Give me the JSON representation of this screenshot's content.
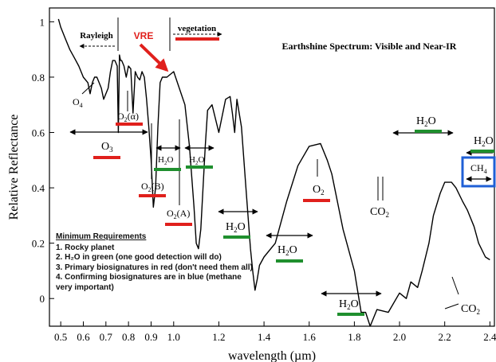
{
  "chart_data": {
    "type": "line",
    "title": "Earthshine Spectrum: Visible and Near-IR",
    "xlabel": "wavelength (µm)",
    "ylabel": "Relative Reflectance",
    "xlim": [
      0.45,
      2.42
    ],
    "ylim": [
      -0.1,
      1.05
    ],
    "x_ticks": [
      0.5,
      0.6,
      0.7,
      0.8,
      0.9,
      1.0,
      1.2,
      1.4,
      1.6,
      1.8,
      2.0,
      2.2,
      2.4
    ],
    "x_tick_labels": [
      "0.5",
      "0.6",
      "0.7",
      "0.8",
      "0.9",
      "1.0",
      "1.2",
      "1.4",
      "1.6",
      "1.8",
      "2.0",
      "2.2",
      "2.4"
    ],
    "y_ticks": [
      0,
      0.2,
      0.4,
      0.6,
      0.8,
      1
    ],
    "y_tick_labels": [
      "0",
      "0.2",
      "0.4",
      "0.6",
      "0.8",
      "1"
    ],
    "grid": false,
    "colors": {
      "curve": "#000000",
      "primary_biosignature": "#e0201c",
      "water": "#1f8f2e",
      "confirming": "#1f5fd6",
      "arrow": "#e0201c"
    },
    "series": [
      {
        "x": [
          0.49,
          0.5,
          0.52,
          0.54,
          0.56,
          0.58,
          0.6,
          0.62,
          0.63,
          0.64,
          0.65,
          0.66,
          0.67,
          0.68,
          0.69,
          0.7,
          0.71,
          0.72,
          0.73,
          0.74,
          0.75,
          0.755,
          0.76,
          0.765,
          0.77,
          0.78,
          0.79,
          0.8,
          0.81,
          0.82,
          0.83,
          0.84,
          0.85,
          0.86,
          0.87,
          0.88,
          0.89,
          0.9,
          0.91,
          0.92,
          0.93,
          0.94,
          0.95,
          0.97,
          1.0,
          1.05,
          1.07,
          1.09,
          1.1,
          1.11,
          1.12,
          1.13,
          1.14,
          1.15,
          1.17,
          1.2,
          1.23,
          1.25,
          1.26,
          1.27,
          1.28,
          1.3,
          1.32,
          1.34,
          1.35,
          1.36,
          1.37,
          1.38,
          1.4,
          1.45,
          1.5,
          1.55,
          1.6,
          1.65,
          1.68,
          1.7,
          1.75,
          1.8,
          1.83,
          1.85,
          1.87,
          1.9,
          1.95,
          2.0,
          2.03,
          2.05,
          2.08,
          2.1,
          2.13,
          2.15,
          2.18,
          2.2,
          2.23,
          2.25,
          2.28,
          2.3,
          2.33,
          2.35,
          2.38,
          2.4
        ],
        "y": [
          1.01,
          0.98,
          0.94,
          0.9,
          0.87,
          0.84,
          0.8,
          0.78,
          0.74,
          0.78,
          0.8,
          0.8,
          0.78,
          0.76,
          0.72,
          0.74,
          0.76,
          0.82,
          0.86,
          0.86,
          0.84,
          0.6,
          0.88,
          0.86,
          0.86,
          0.84,
          0.8,
          0.84,
          0.83,
          0.67,
          0.82,
          0.8,
          0.79,
          0.82,
          0.8,
          0.72,
          0.62,
          0.5,
          0.33,
          0.4,
          0.62,
          0.78,
          0.8,
          0.8,
          0.82,
          0.7,
          0.55,
          0.33,
          0.2,
          0.18,
          0.25,
          0.4,
          0.55,
          0.68,
          0.7,
          0.6,
          0.72,
          0.73,
          0.67,
          0.6,
          0.72,
          0.62,
          0.4,
          0.18,
          0.1,
          0.03,
          0.07,
          0.12,
          0.15,
          0.2,
          0.35,
          0.48,
          0.55,
          0.56,
          0.5,
          0.45,
          0.25,
          0.1,
          -0.05,
          -0.05,
          -0.1,
          -0.04,
          -0.05,
          0.02,
          0.0,
          0.06,
          0.04,
          0.1,
          0.2,
          0.3,
          0.38,
          0.42,
          0.42,
          0.4,
          0.35,
          0.32,
          0.26,
          0.2,
          0.15,
          0.14
        ]
      }
    ],
    "annotations": {
      "rayleigh": "Rayleigh",
      "vre": "VRE",
      "vegetation": "vegetation",
      "o4": "O4",
      "o2alpha": "O2(α)",
      "o3": "O3",
      "o2b": "O2(B)",
      "o2a": "O2(A)",
      "o2": "O2",
      "h2o": "H2O",
      "co2": "CO2",
      "ch4": "CH4"
    }
  },
  "requirements": {
    "title": "Minimum Requirements",
    "items": [
      "1. Rocky planet",
      "2. H₂O in green (one good detection will do)",
      "3. Primary biosignatures in red (don't need them all)",
      "4. Confirming biosignatures are in blue (methane very important)"
    ]
  }
}
